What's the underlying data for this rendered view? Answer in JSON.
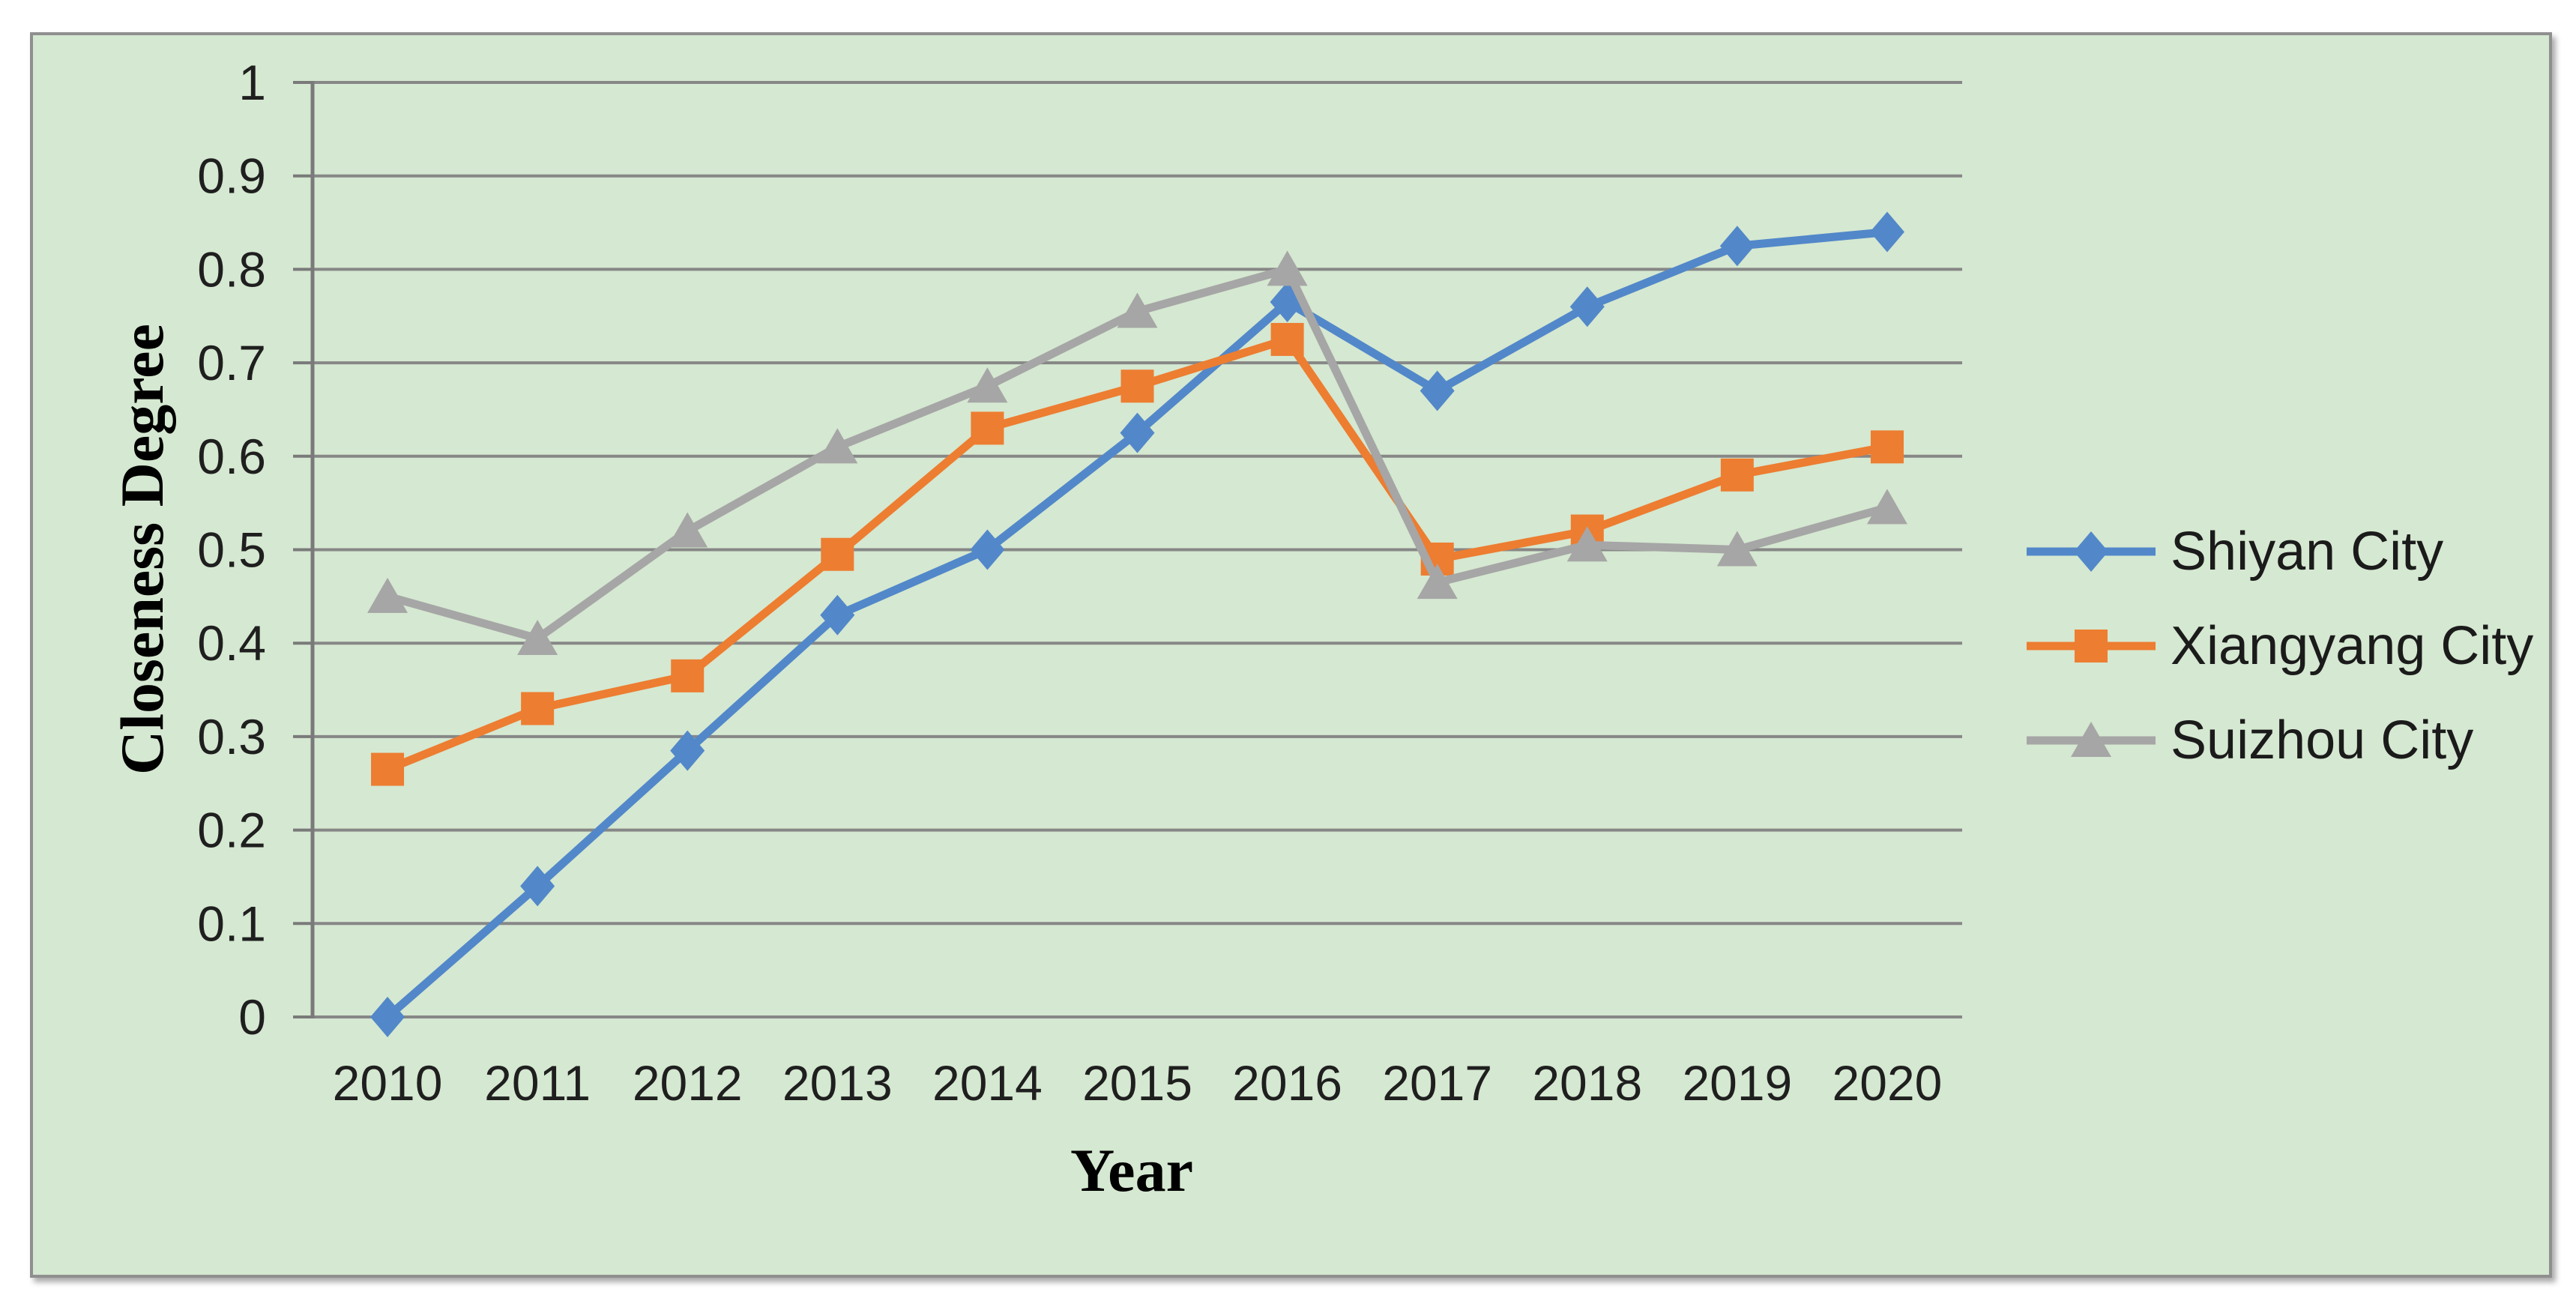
{
  "figure": {
    "background_color": "#ffffff",
    "panel_background_color": "#d5e8d1",
    "panel_border_color": "#8f8f8f"
  },
  "chart_data": {
    "type": "line",
    "title": "",
    "xlabel": "Year",
    "ylabel": "Closeness Degree",
    "categories": [
      "2010",
      "2011",
      "2012",
      "2013",
      "2014",
      "2015",
      "2016",
      "2017",
      "2018",
      "2019",
      "2020"
    ],
    "ylim": [
      0,
      1
    ],
    "ytick_step": 0.1,
    "ytick_labels": [
      "0",
      "0.1",
      "0.2",
      "0.3",
      "0.4",
      "0.5",
      "0.6",
      "0.7",
      "0.8",
      "0.9",
      "1"
    ],
    "grid": true,
    "gridline_color": "#878787",
    "axis_color": "#7a7a7a",
    "tick_text_color": "#1f1f1f",
    "legend_position": "right",
    "series": [
      {
        "name": "Shiyan City",
        "color": "#5288c9",
        "marker": "diamond",
        "values": [
          0.0,
          0.14,
          0.285,
          0.43,
          0.5,
          0.625,
          0.765,
          0.67,
          0.76,
          0.825,
          0.84
        ]
      },
      {
        "name": "Xiangyang City",
        "color": "#ed7d31",
        "marker": "square",
        "values": [
          0.265,
          0.33,
          0.365,
          0.495,
          0.63,
          0.675,
          0.725,
          0.49,
          0.52,
          0.58,
          0.61
        ]
      },
      {
        "name": "Suizhou City",
        "color": "#a6a6a6",
        "marker": "triangle",
        "values": [
          0.45,
          0.405,
          0.52,
          0.61,
          0.675,
          0.755,
          0.8,
          0.465,
          0.505,
          0.5,
          0.545
        ]
      }
    ]
  }
}
